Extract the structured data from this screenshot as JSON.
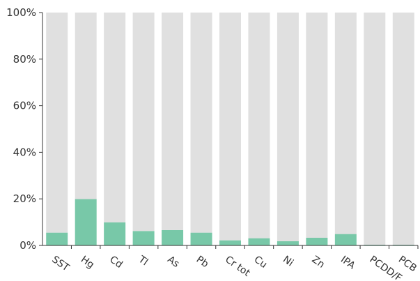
{
  "chart_data": {
    "type": "bar",
    "stacked_to_100": true,
    "categories": [
      "SST",
      "Hg",
      "Cd",
      "Tl",
      "As",
      "Pb",
      "Cr tot",
      "Cu",
      "Ni",
      "Zn",
      "IPA",
      "PCDD/F",
      "PCB"
    ],
    "series": [
      {
        "values": [
          5.5,
          19.9,
          9.9,
          6.2,
          6.6,
          5.5,
          2.2,
          3.1,
          1.8,
          3.3,
          4.9,
          0.3,
          0.3
        ]
      },
      {
        "values": [
          94.5,
          80.1,
          90.1,
          93.8,
          93.4,
          94.5,
          97.8,
          96.9,
          98.2,
          96.7,
          95.1,
          99.7,
          99.7
        ]
      }
    ],
    "y_ticks": [
      "0%",
      "20%",
      "40%",
      "60%",
      "80%",
      "100%"
    ],
    "ylim": [
      0,
      100
    ],
    "grid": false,
    "colors": {
      "highlight": "#78c8a8",
      "remainder": "#e0e0e0",
      "axis": "#333333"
    }
  }
}
